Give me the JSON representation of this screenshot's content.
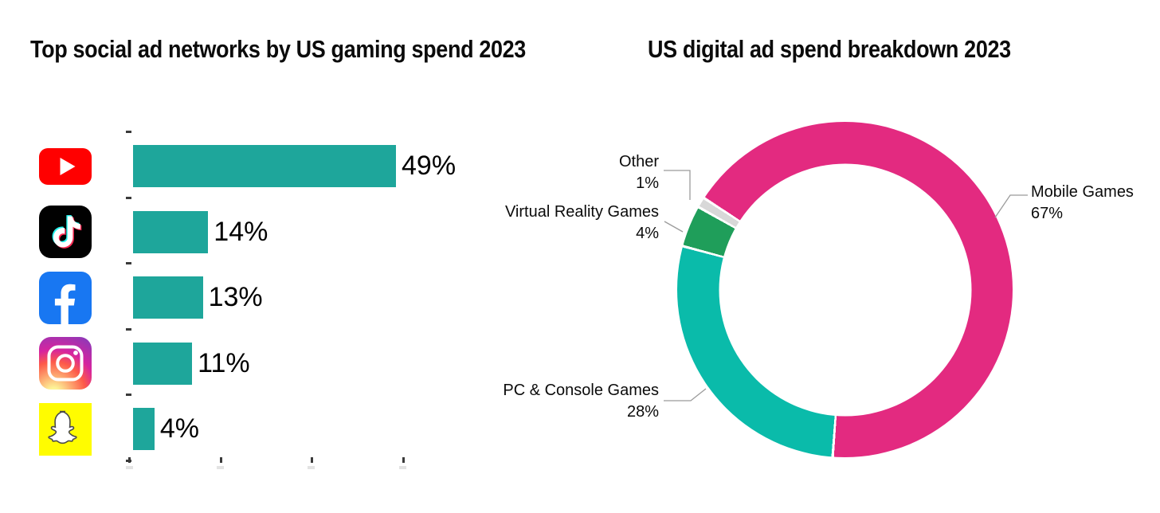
{
  "page": {
    "background": "#ffffff"
  },
  "chart_data": [
    {
      "type": "bar",
      "orientation": "horizontal",
      "title": "Top social ad networks by US gaming spend 2023",
      "categories": [
        "YouTube",
        "TikTok",
        "Facebook",
        "Instagram",
        "Snapchat"
      ],
      "values": [
        49,
        14,
        13,
        11,
        4
      ],
      "labels": [
        "49%",
        "14%",
        "13%",
        "11%",
        "4%"
      ],
      "unit": "%",
      "bar_color": "#1EA69B",
      "xlim": [
        0,
        51
      ],
      "grid": false,
      "x_tick_count": 4,
      "y_tick_count": 6,
      "tick_labels_visible": false,
      "category_icons": [
        "youtube-icon",
        "tiktok-icon",
        "facebook-icon",
        "instagram-icon",
        "snapchat-icon"
      ]
    },
    {
      "type": "pie",
      "donut": true,
      "title": "US digital ad spend breakdown 2023",
      "start_angle_deg": -57,
      "slices": [
        {
          "label": "Mobile Games",
          "pct": 67,
          "pct_label": "67%",
          "color": "#E32A80"
        },
        {
          "label": "PC & Console Games",
          "pct": 28,
          "pct_label": "28%",
          "color": "#0ABBAA"
        },
        {
          "label": "Virtual Reality Games",
          "pct": 4,
          "pct_label": "4%",
          "color": "#1F9E5A"
        },
        {
          "label": "Other",
          "pct": 1,
          "pct_label": "1%",
          "color": "#D8D8D8"
        }
      ],
      "legend_position": "outside-labels-with-leader-lines",
      "ring_thickness_px": 52
    }
  ],
  "icon_colors": {
    "youtube_red": "#FF0000",
    "tiktok_black": "#010101",
    "tiktok_cyan": "#25F4EE",
    "tiktok_red": "#FE2C55",
    "facebook_blue": "#1877F2",
    "snapchat_yellow": "#FFFC00"
  }
}
